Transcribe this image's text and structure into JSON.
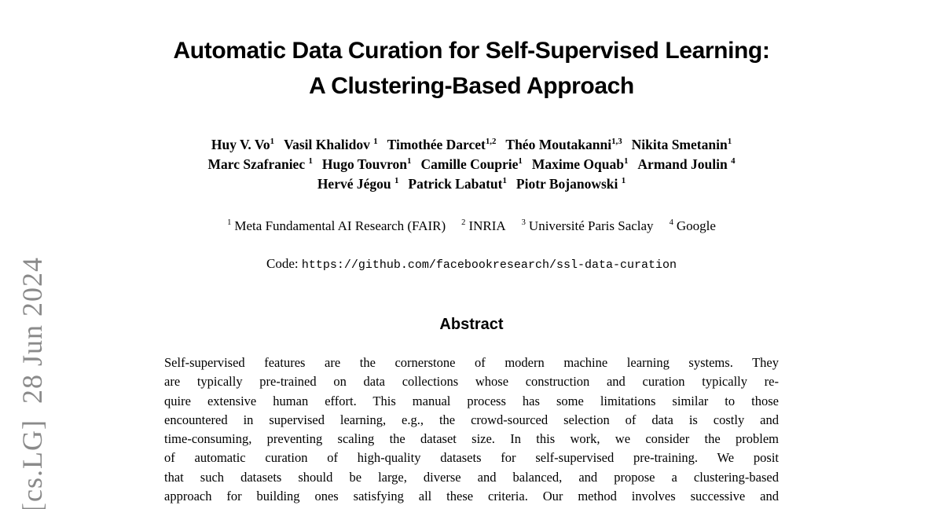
{
  "arxiv_stamp": {
    "text": "[cs.LG]  28 Jun 2024",
    "color": "#8a8a8a"
  },
  "title": {
    "line1": "Automatic Data Curation for Self-Supervised Learning:",
    "line2": "A Clustering-Based Approach"
  },
  "authors": {
    "line1": [
      {
        "name": "Huy V. Vo",
        "sup": "1"
      },
      {
        "name": "Vasil Khalidov ",
        "sup": "1"
      },
      {
        "name": "Timothée Darcet",
        "sup": "1,2"
      },
      {
        "name": "Théo Moutakanni",
        "sup": "1,3"
      },
      {
        "name": "Nikita Smetanin",
        "sup": "1"
      }
    ],
    "line2": [
      {
        "name": "Marc Szafraniec ",
        "sup": "1"
      },
      {
        "name": "Hugo Touvron",
        "sup": "1"
      },
      {
        "name": "Camille Couprie",
        "sup": "1"
      },
      {
        "name": "Maxime Oquab",
        "sup": "1"
      },
      {
        "name": "Armand Joulin ",
        "sup": "4"
      }
    ],
    "line3": [
      {
        "name": "Hervé Jégou ",
        "sup": "1"
      },
      {
        "name": "Patrick Labatut",
        "sup": "1"
      },
      {
        "name": "Piotr Bojanowski ",
        "sup": "1"
      }
    ]
  },
  "affiliations": [
    {
      "sup": "1",
      "name": "Meta Fundamental AI Research (FAIR)"
    },
    {
      "sup": "2",
      "name": "INRIA"
    },
    {
      "sup": "3",
      "name": "Université Paris Saclay"
    },
    {
      "sup": "4",
      "name": "Google"
    }
  ],
  "code": {
    "label": "Code:",
    "url": "https://github.com/facebookresearch/ssl-data-curation"
  },
  "abstract": {
    "heading": "Abstract",
    "lines": [
      "Self-supervised features are the cornerstone of modern machine learning systems. They",
      "are typically pre-trained on data collections whose construction and curation typically re-",
      "quire extensive human effort. This manual process has some limitations similar to those",
      "encountered in supervised learning, e.g., the crowd-sourced selection of data is costly and",
      "time-consuming, preventing scaling the dataset size. In this work, we consider the problem",
      "of automatic curation of high-quality datasets for self-supervised pre-training. We posit",
      "that such datasets should be large, diverse and balanced, and propose a clustering-based",
      "approach for building ones satisfying all these criteria. Our method involves successive and"
    ]
  }
}
